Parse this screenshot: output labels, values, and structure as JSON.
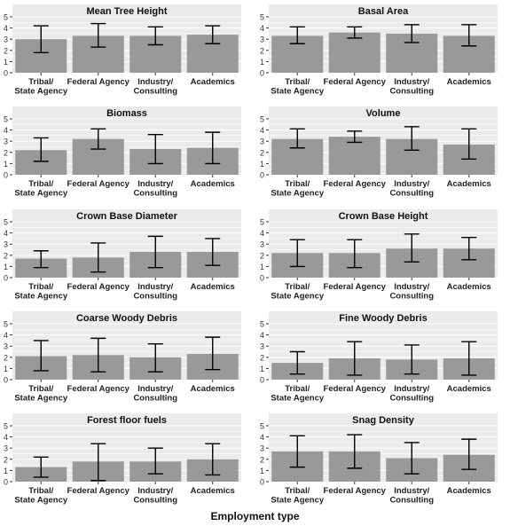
{
  "figure": {
    "xlabel": "Employment type",
    "ytick_labels": [
      "0",
      "1",
      "2",
      "3",
      "4",
      "5"
    ],
    "category_labels": [
      [
        "Tribal/",
        "State Agency"
      ],
      [
        "Federal Agency"
      ],
      [
        "Industry/",
        "Consulting"
      ],
      [
        "Academics"
      ]
    ],
    "colors": {
      "panel_bg": "#ebebeb",
      "grid": "#ffffff",
      "bar": "#999999",
      "errorbar": "#000000"
    }
  },
  "chart_data": [
    {
      "type": "bar",
      "title": "Mean Tree Height",
      "categories": [
        "Tribal/State Agency",
        "Federal Agency",
        "Industry/Consulting",
        "Academics"
      ],
      "values": [
        3.0,
        3.3,
        3.3,
        3.4
      ],
      "error_low": [
        1.8,
        2.3,
        2.5,
        2.6
      ],
      "error_high": [
        4.2,
        4.4,
        4.1,
        4.2
      ],
      "ylim": [
        0,
        5
      ]
    },
    {
      "type": "bar",
      "title": "Basal Area",
      "categories": [
        "Tribal/State Agency",
        "Federal Agency",
        "Industry/Consulting",
        "Academics"
      ],
      "values": [
        3.3,
        3.6,
        3.5,
        3.3
      ],
      "error_low": [
        2.6,
        3.1,
        2.7,
        2.4
      ],
      "error_high": [
        4.1,
        4.1,
        4.3,
        4.3
      ],
      "ylim": [
        0,
        5
      ]
    },
    {
      "type": "bar",
      "title": "Biomass",
      "categories": [
        "Tribal/State Agency",
        "Federal Agency",
        "Industry/Consulting",
        "Academics"
      ],
      "values": [
        2.2,
        3.2,
        2.3,
        2.4
      ],
      "error_low": [
        1.2,
        2.3,
        1.0,
        1.0
      ],
      "error_high": [
        3.3,
        4.1,
        3.6,
        3.8
      ],
      "ylim": [
        0,
        5
      ]
    },
    {
      "type": "bar",
      "title": "Volume",
      "categories": [
        "Tribal/State Agency",
        "Federal Agency",
        "Industry/Consulting",
        "Academics"
      ],
      "values": [
        3.2,
        3.4,
        3.2,
        2.7
      ],
      "error_low": [
        2.4,
        2.9,
        2.2,
        1.4
      ],
      "error_high": [
        4.1,
        3.9,
        4.3,
        4.1
      ],
      "ylim": [
        0,
        5
      ]
    },
    {
      "type": "bar",
      "title": "Crown Base Diameter",
      "categories": [
        "Tribal/State Agency",
        "Federal Agency",
        "Industry/Consulting",
        "Academics"
      ],
      "values": [
        1.7,
        1.8,
        2.3,
        2.3
      ],
      "error_low": [
        0.9,
        0.5,
        0.9,
        1.1
      ],
      "error_high": [
        2.4,
        3.1,
        3.7,
        3.5
      ],
      "ylim": [
        0,
        5
      ]
    },
    {
      "type": "bar",
      "title": "Crown Base Height",
      "categories": [
        "Tribal/State Agency",
        "Federal Agency",
        "Industry/Consulting",
        "Academics"
      ],
      "values": [
        2.2,
        2.2,
        2.6,
        2.6
      ],
      "error_low": [
        1.0,
        0.9,
        1.4,
        1.6
      ],
      "error_high": [
        3.4,
        3.4,
        3.9,
        3.6
      ],
      "ylim": [
        0,
        5
      ]
    },
    {
      "type": "bar",
      "title": "Coarse Woody Debris",
      "categories": [
        "Tribal/State Agency",
        "Federal Agency",
        "Industry/Consulting",
        "Academics"
      ],
      "values": [
        2.1,
        2.2,
        2.0,
        2.3
      ],
      "error_low": [
        0.8,
        0.7,
        0.7,
        0.9
      ],
      "error_high": [
        3.5,
        3.7,
        3.2,
        3.8
      ],
      "ylim": [
        0,
        5
      ]
    },
    {
      "type": "bar",
      "title": "Fine Woody Debris",
      "categories": [
        "Tribal/State Agency",
        "Federal Agency",
        "Industry/Consulting",
        "Academics"
      ],
      "values": [
        1.5,
        1.9,
        1.8,
        1.9
      ],
      "error_low": [
        0.5,
        0.4,
        0.5,
        0.4
      ],
      "error_high": [
        2.5,
        3.4,
        3.1,
        3.4
      ],
      "ylim": [
        0,
        5
      ]
    },
    {
      "type": "bar",
      "title": "Forest floor fuels",
      "categories": [
        "Tribal/State Agency",
        "Federal Agency",
        "Industry/Consulting",
        "Academics"
      ],
      "values": [
        1.3,
        1.8,
        1.8,
        2.0
      ],
      "error_low": [
        0.4,
        0.1,
        0.7,
        0.6
      ],
      "error_high": [
        2.2,
        3.4,
        3.0,
        3.4
      ],
      "ylim": [
        0,
        5
      ]
    },
    {
      "type": "bar",
      "title": "Snag Density",
      "categories": [
        "Tribal/State Agency",
        "Federal Agency",
        "Industry/Consulting",
        "Academics"
      ],
      "values": [
        2.7,
        2.7,
        2.1,
        2.4
      ],
      "error_low": [
        1.3,
        1.2,
        0.7,
        1.1
      ],
      "error_high": [
        4.1,
        4.2,
        3.5,
        3.8
      ],
      "ylim": [
        0,
        5
      ]
    }
  ]
}
